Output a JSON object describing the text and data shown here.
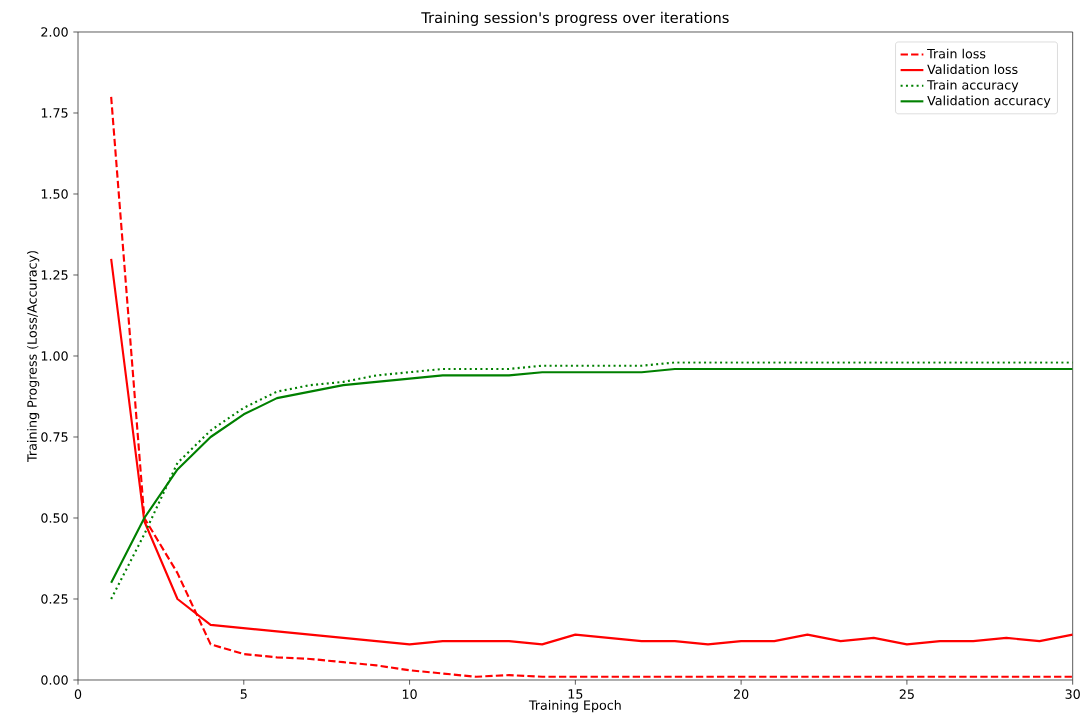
{
  "chart_data": {
    "type": "line",
    "title": "Training session's progress over iterations",
    "xlabel": "Training Epoch",
    "ylabel": "Training Progress (Loss/Accuracy)",
    "x": [
      1,
      2,
      3,
      4,
      5,
      6,
      7,
      8,
      9,
      10,
      11,
      12,
      13,
      14,
      15,
      16,
      17,
      18,
      19,
      20,
      21,
      22,
      23,
      24,
      25,
      26,
      27,
      28,
      29,
      30
    ],
    "series": [
      {
        "name": "Train loss",
        "color": "#ff0000",
        "line_style": "dashed",
        "values": [
          1.8,
          0.5,
          0.33,
          0.11,
          0.08,
          0.07,
          0.065,
          0.055,
          0.045,
          0.03,
          0.02,
          0.01,
          0.015,
          0.01,
          0.01,
          0.01,
          0.01,
          0.01,
          0.01,
          0.01,
          0.01,
          0.01,
          0.01,
          0.01,
          0.01,
          0.01,
          0.01,
          0.01,
          0.01,
          0.01
        ]
      },
      {
        "name": "Validation loss",
        "color": "#ff0000",
        "line_style": "solid",
        "values": [
          1.3,
          0.49,
          0.25,
          0.17,
          0.16,
          0.15,
          0.14,
          0.13,
          0.12,
          0.11,
          0.12,
          0.12,
          0.12,
          0.11,
          0.14,
          0.13,
          0.12,
          0.12,
          0.11,
          0.12,
          0.12,
          0.14,
          0.12,
          0.13,
          0.11,
          0.12,
          0.12,
          0.13,
          0.12,
          0.14
        ]
      },
      {
        "name": "Train accuracy",
        "color": "#008000",
        "line_style": "dotted",
        "values": [
          0.25,
          0.45,
          0.67,
          0.77,
          0.84,
          0.89,
          0.91,
          0.92,
          0.94,
          0.95,
          0.96,
          0.96,
          0.96,
          0.97,
          0.97,
          0.97,
          0.97,
          0.98,
          0.98,
          0.98,
          0.98,
          0.98,
          0.98,
          0.98,
          0.98,
          0.98,
          0.98,
          0.98,
          0.98,
          0.98
        ]
      },
      {
        "name": "Validation accuracy",
        "color": "#008000",
        "line_style": "solid",
        "values": [
          0.3,
          0.5,
          0.65,
          0.75,
          0.82,
          0.87,
          0.89,
          0.91,
          0.92,
          0.93,
          0.94,
          0.94,
          0.94,
          0.95,
          0.95,
          0.95,
          0.95,
          0.96,
          0.96,
          0.96,
          0.96,
          0.96,
          0.96,
          0.96,
          0.96,
          0.96,
          0.96,
          0.96,
          0.96,
          0.96
        ]
      }
    ],
    "xlim": [
      0,
      30
    ],
    "xticks": [
      0,
      5,
      10,
      15,
      20,
      25,
      30
    ],
    "ylim": [
      0,
      2
    ],
    "yticks": [
      {
        "value": 0,
        "label": "0.00"
      },
      {
        "value": 0.25,
        "label": "0.25"
      },
      {
        "value": 0.5,
        "label": "0.50"
      },
      {
        "value": 0.75,
        "label": "0.75"
      },
      {
        "value": 1,
        "label": "1.00"
      },
      {
        "value": 1.25,
        "label": "1.25"
      },
      {
        "value": 1.5,
        "label": "1.50"
      },
      {
        "value": 1.75,
        "label": "1.75"
      },
      {
        "value": 2,
        "label": "2.00"
      }
    ],
    "legend": "top right"
  }
}
